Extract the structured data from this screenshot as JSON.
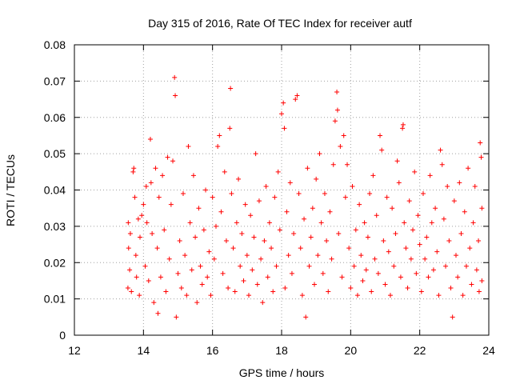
{
  "chart_data": {
    "type": "scatter",
    "title": "Day 315 of 2016, Rate Of TEC Index for receiver autf",
    "xlabel": "GPS time / hours",
    "ylabel": "ROTI / TECUs",
    "xlim": [
      12,
      24
    ],
    "ylim": [
      0,
      0.08
    ],
    "x_ticks": [
      12,
      14,
      16,
      18,
      20,
      22,
      24
    ],
    "x_tick_labels": [
      "12",
      "14",
      "16",
      "18",
      "20",
      "22",
      "24"
    ],
    "y_ticks": [
      0,
      0.01,
      0.02,
      0.03,
      0.04,
      0.05,
      0.06,
      0.07,
      0.08
    ],
    "y_tick_labels": [
      "0",
      "0.01",
      "0.02",
      "0.03",
      "0.04",
      "0.05",
      "0.06",
      "0.07",
      "0.08"
    ],
    "grid": true,
    "marker": "plus",
    "color": "#ff0000",
    "series": [
      {
        "name": "ROTI",
        "points": [
          [
            13.55,
            0.013
          ],
          [
            13.56,
            0.031
          ],
          [
            13.57,
            0.024
          ],
          [
            13.6,
            0.018
          ],
          [
            13.62,
            0.028
          ],
          [
            13.65,
            0.012
          ],
          [
            13.7,
            0.045
          ],
          [
            13.72,
            0.046
          ],
          [
            13.75,
            0.038
          ],
          [
            13.78,
            0.022
          ],
          [
            13.8,
            0.016
          ],
          [
            13.85,
            0.032
          ],
          [
            13.88,
            0.011
          ],
          [
            13.9,
            0.027
          ],
          [
            13.95,
            0.033
          ],
          [
            14.0,
            0.036
          ],
          [
            14.05,
            0.019
          ],
          [
            14.08,
            0.041
          ],
          [
            14.1,
            0.031
          ],
          [
            14.15,
            0.015
          ],
          [
            14.2,
            0.054
          ],
          [
            14.22,
            0.042
          ],
          [
            14.25,
            0.028
          ],
          [
            14.3,
            0.009
          ],
          [
            14.35,
            0.046
          ],
          [
            14.4,
            0.024
          ],
          [
            14.42,
            0.006
          ],
          [
            14.45,
            0.038
          ],
          [
            14.5,
            0.016
          ],
          [
            14.55,
            0.044
          ],
          [
            14.6,
            0.029
          ],
          [
            14.65,
            0.012
          ],
          [
            14.7,
            0.049
          ],
          [
            14.75,
            0.021
          ],
          [
            14.8,
            0.036
          ],
          [
            14.85,
            0.048
          ],
          [
            14.9,
            0.071
          ],
          [
            14.92,
            0.066
          ],
          [
            14.95,
            0.005
          ],
          [
            15.0,
            0.017
          ],
          [
            15.05,
            0.026
          ],
          [
            15.1,
            0.013
          ],
          [
            15.15,
            0.039
          ],
          [
            15.2,
            0.022
          ],
          [
            15.25,
            0.011
          ],
          [
            15.3,
            0.052
          ],
          [
            15.35,
            0.031
          ],
          [
            15.4,
            0.018
          ],
          [
            15.45,
            0.044
          ],
          [
            15.5,
            0.027
          ],
          [
            15.55,
            0.009
          ],
          [
            15.6,
            0.035
          ],
          [
            15.65,
            0.019
          ],
          [
            15.7,
            0.014
          ],
          [
            15.75,
            0.029
          ],
          [
            15.8,
            0.04
          ],
          [
            15.85,
            0.016
          ],
          [
            15.9,
            0.023
          ],
          [
            15.95,
            0.011
          ],
          [
            16.0,
            0.038
          ],
          [
            16.05,
            0.021
          ],
          [
            16.1,
            0.03
          ],
          [
            16.15,
            0.052
          ],
          [
            16.2,
            0.055
          ],
          [
            16.25,
            0.034
          ],
          [
            16.3,
            0.017
          ],
          [
            16.35,
            0.045
          ],
          [
            16.4,
            0.026
          ],
          [
            16.45,
            0.013
          ],
          [
            16.5,
            0.057
          ],
          [
            16.52,
            0.068
          ],
          [
            16.55,
            0.039
          ],
          [
            16.6,
            0.024
          ],
          [
            16.65,
            0.012
          ],
          [
            16.7,
            0.031
          ],
          [
            16.75,
            0.043
          ],
          [
            16.8,
            0.019
          ],
          [
            16.85,
            0.028
          ],
          [
            16.9,
            0.015
          ],
          [
            16.95,
            0.036
          ],
          [
            17.0,
            0.022
          ],
          [
            17.05,
            0.011
          ],
          [
            17.1,
            0.033
          ],
          [
            17.15,
            0.018
          ],
          [
            17.2,
            0.027
          ],
          [
            17.25,
            0.05
          ],
          [
            17.3,
            0.014
          ],
          [
            17.35,
            0.037
          ],
          [
            17.4,
            0.021
          ],
          [
            17.45,
            0.009
          ],
          [
            17.5,
            0.026
          ],
          [
            17.55,
            0.041
          ],
          [
            17.6,
            0.016
          ],
          [
            17.65,
            0.031
          ],
          [
            17.7,
            0.024
          ],
          [
            17.75,
            0.012
          ],
          [
            17.8,
            0.038
          ],
          [
            17.85,
            0.019
          ],
          [
            17.9,
            0.045
          ],
          [
            17.95,
            0.029
          ],
          [
            18.0,
            0.061
          ],
          [
            18.05,
            0.064
          ],
          [
            18.08,
            0.057
          ],
          [
            18.1,
            0.013
          ],
          [
            18.15,
            0.034
          ],
          [
            18.2,
            0.022
          ],
          [
            18.25,
            0.042
          ],
          [
            18.3,
            0.017
          ],
          [
            18.35,
            0.028
          ],
          [
            18.4,
            0.065
          ],
          [
            18.45,
            0.066
          ],
          [
            18.5,
            0.039
          ],
          [
            18.55,
            0.024
          ],
          [
            18.6,
            0.011
          ],
          [
            18.65,
            0.032
          ],
          [
            18.7,
            0.005
          ],
          [
            18.75,
            0.046
          ],
          [
            18.8,
            0.019
          ],
          [
            18.85,
            0.027
          ],
          [
            18.9,
            0.035
          ],
          [
            18.95,
            0.014
          ],
          [
            19.0,
            0.043
          ],
          [
            19.05,
            0.022
          ],
          [
            19.1,
            0.05
          ],
          [
            19.15,
            0.031
          ],
          [
            19.2,
            0.017
          ],
          [
            19.25,
            0.039
          ],
          [
            19.3,
            0.026
          ],
          [
            19.35,
            0.012
          ],
          [
            19.4,
            0.034
          ],
          [
            19.45,
            0.021
          ],
          [
            19.5,
            0.047
          ],
          [
            19.55,
            0.059
          ],
          [
            19.6,
            0.067
          ],
          [
            19.62,
            0.062
          ],
          [
            19.65,
            0.028
          ],
          [
            19.7,
            0.052
          ],
          [
            19.75,
            0.016
          ],
          [
            19.8,
            0.055
          ],
          [
            19.85,
            0.038
          ],
          [
            19.9,
            0.047
          ],
          [
            19.95,
            0.024
          ],
          [
            20.0,
            0.013
          ],
          [
            20.05,
            0.041
          ],
          [
            20.1,
            0.019
          ],
          [
            20.15,
            0.029
          ],
          [
            20.2,
            0.011
          ],
          [
            20.25,
            0.036
          ],
          [
            20.3,
            0.022
          ],
          [
            20.35,
            0.015
          ],
          [
            20.4,
            0.031
          ],
          [
            20.45,
            0.018
          ],
          [
            20.5,
            0.027
          ],
          [
            20.55,
            0.039
          ],
          [
            20.6,
            0.012
          ],
          [
            20.65,
            0.044
          ],
          [
            20.7,
            0.021
          ],
          [
            20.75,
            0.033
          ],
          [
            20.8,
            0.017
          ],
          [
            20.85,
            0.055
          ],
          [
            20.9,
            0.051
          ],
          [
            20.95,
            0.026
          ],
          [
            21.0,
            0.014
          ],
          [
            21.05,
            0.038
          ],
          [
            21.1,
            0.023
          ],
          [
            21.15,
            0.011
          ],
          [
            21.2,
            0.035
          ],
          [
            21.25,
            0.019
          ],
          [
            21.3,
            0.028
          ],
          [
            21.35,
            0.048
          ],
          [
            21.4,
            0.042
          ],
          [
            21.45,
            0.016
          ],
          [
            21.5,
            0.057
          ],
          [
            21.52,
            0.058
          ],
          [
            21.55,
            0.031
          ],
          [
            21.6,
            0.024
          ],
          [
            21.65,
            0.013
          ],
          [
            21.7,
            0.037
          ],
          [
            21.75,
            0.021
          ],
          [
            21.8,
            0.029
          ],
          [
            21.85,
            0.045
          ],
          [
            21.9,
            0.017
          ],
          [
            21.95,
            0.033
          ],
          [
            22.0,
            0.025
          ],
          [
            22.05,
            0.012
          ],
          [
            22.1,
            0.039
          ],
          [
            22.15,
            0.021
          ],
          [
            22.2,
            0.027
          ],
          [
            22.25,
            0.016
          ],
          [
            22.3,
            0.044
          ],
          [
            22.35,
            0.031
          ],
          [
            22.4,
            0.018
          ],
          [
            22.45,
            0.035
          ],
          [
            22.5,
            0.023
          ],
          [
            22.55,
            0.011
          ],
          [
            22.6,
            0.051
          ],
          [
            22.65,
            0.047
          ],
          [
            22.7,
            0.032
          ],
          [
            22.75,
            0.019
          ],
          [
            22.8,
            0.041
          ],
          [
            22.85,
            0.026
          ],
          [
            22.9,
            0.013
          ],
          [
            22.95,
            0.005
          ],
          [
            23.0,
            0.037
          ],
          [
            23.05,
            0.022
          ],
          [
            23.1,
            0.016
          ],
          [
            23.15,
            0.042
          ],
          [
            23.2,
            0.028
          ],
          [
            23.25,
            0.011
          ],
          [
            23.3,
            0.034
          ],
          [
            23.35,
            0.019
          ],
          [
            23.4,
            0.046
          ],
          [
            23.45,
            0.024
          ],
          [
            23.5,
            0.014
          ],
          [
            23.55,
            0.031
          ],
          [
            23.6,
            0.041
          ],
          [
            23.65,
            0.018
          ],
          [
            23.7,
            0.026
          ],
          [
            23.72,
            0.012
          ],
          [
            23.75,
            0.053
          ],
          [
            23.78,
            0.049
          ],
          [
            23.8,
            0.035
          ],
          [
            23.8,
            0.015
          ]
        ]
      }
    ]
  }
}
